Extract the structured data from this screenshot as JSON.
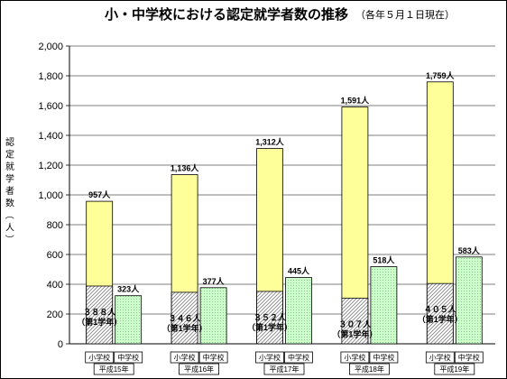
{
  "chart_data": {
    "type": "bar",
    "title": "小・中学校における認定就学者数の推移",
    "subtitle": "（各年５月１日現在）",
    "ylabel": "認定就学者数（人）",
    "ylim": [
      0,
      2000
    ],
    "yticks": [
      "0",
      "200",
      "400",
      "600",
      "800",
      "1,000",
      "1,200",
      "1,400",
      "1,600",
      "1,800",
      "2,000"
    ],
    "years": [
      "平成15年",
      "平成16年",
      "平成17年",
      "平成18年",
      "平成19年"
    ],
    "school_labels": [
      "小学校",
      "中学校"
    ],
    "series": [
      {
        "name": "小学校",
        "values": [
          957,
          1136,
          1312,
          1591,
          1759
        ],
        "labels": [
          "957人",
          "1,136人",
          "1,312人",
          "1,591人",
          "1,759人"
        ]
      },
      {
        "name": "中学校",
        "values": [
          323,
          377,
          445,
          518,
          583
        ],
        "labels": [
          "323人",
          "377人",
          "445人",
          "518人",
          "583人"
        ]
      }
    ],
    "first_grade": {
      "values": [
        388,
        346,
        352,
        307,
        405
      ],
      "labels": [
        "３８８人",
        "３４６人",
        "３５２人",
        "３０７人",
        "４０５人"
      ],
      "note": "（第1学年）"
    },
    "grid": true,
    "colors": {
      "elem": "#ffff99",
      "junior_fill": "#ccffcc",
      "first_grade_hatch": "#808080",
      "stroke": "#000000"
    }
  }
}
